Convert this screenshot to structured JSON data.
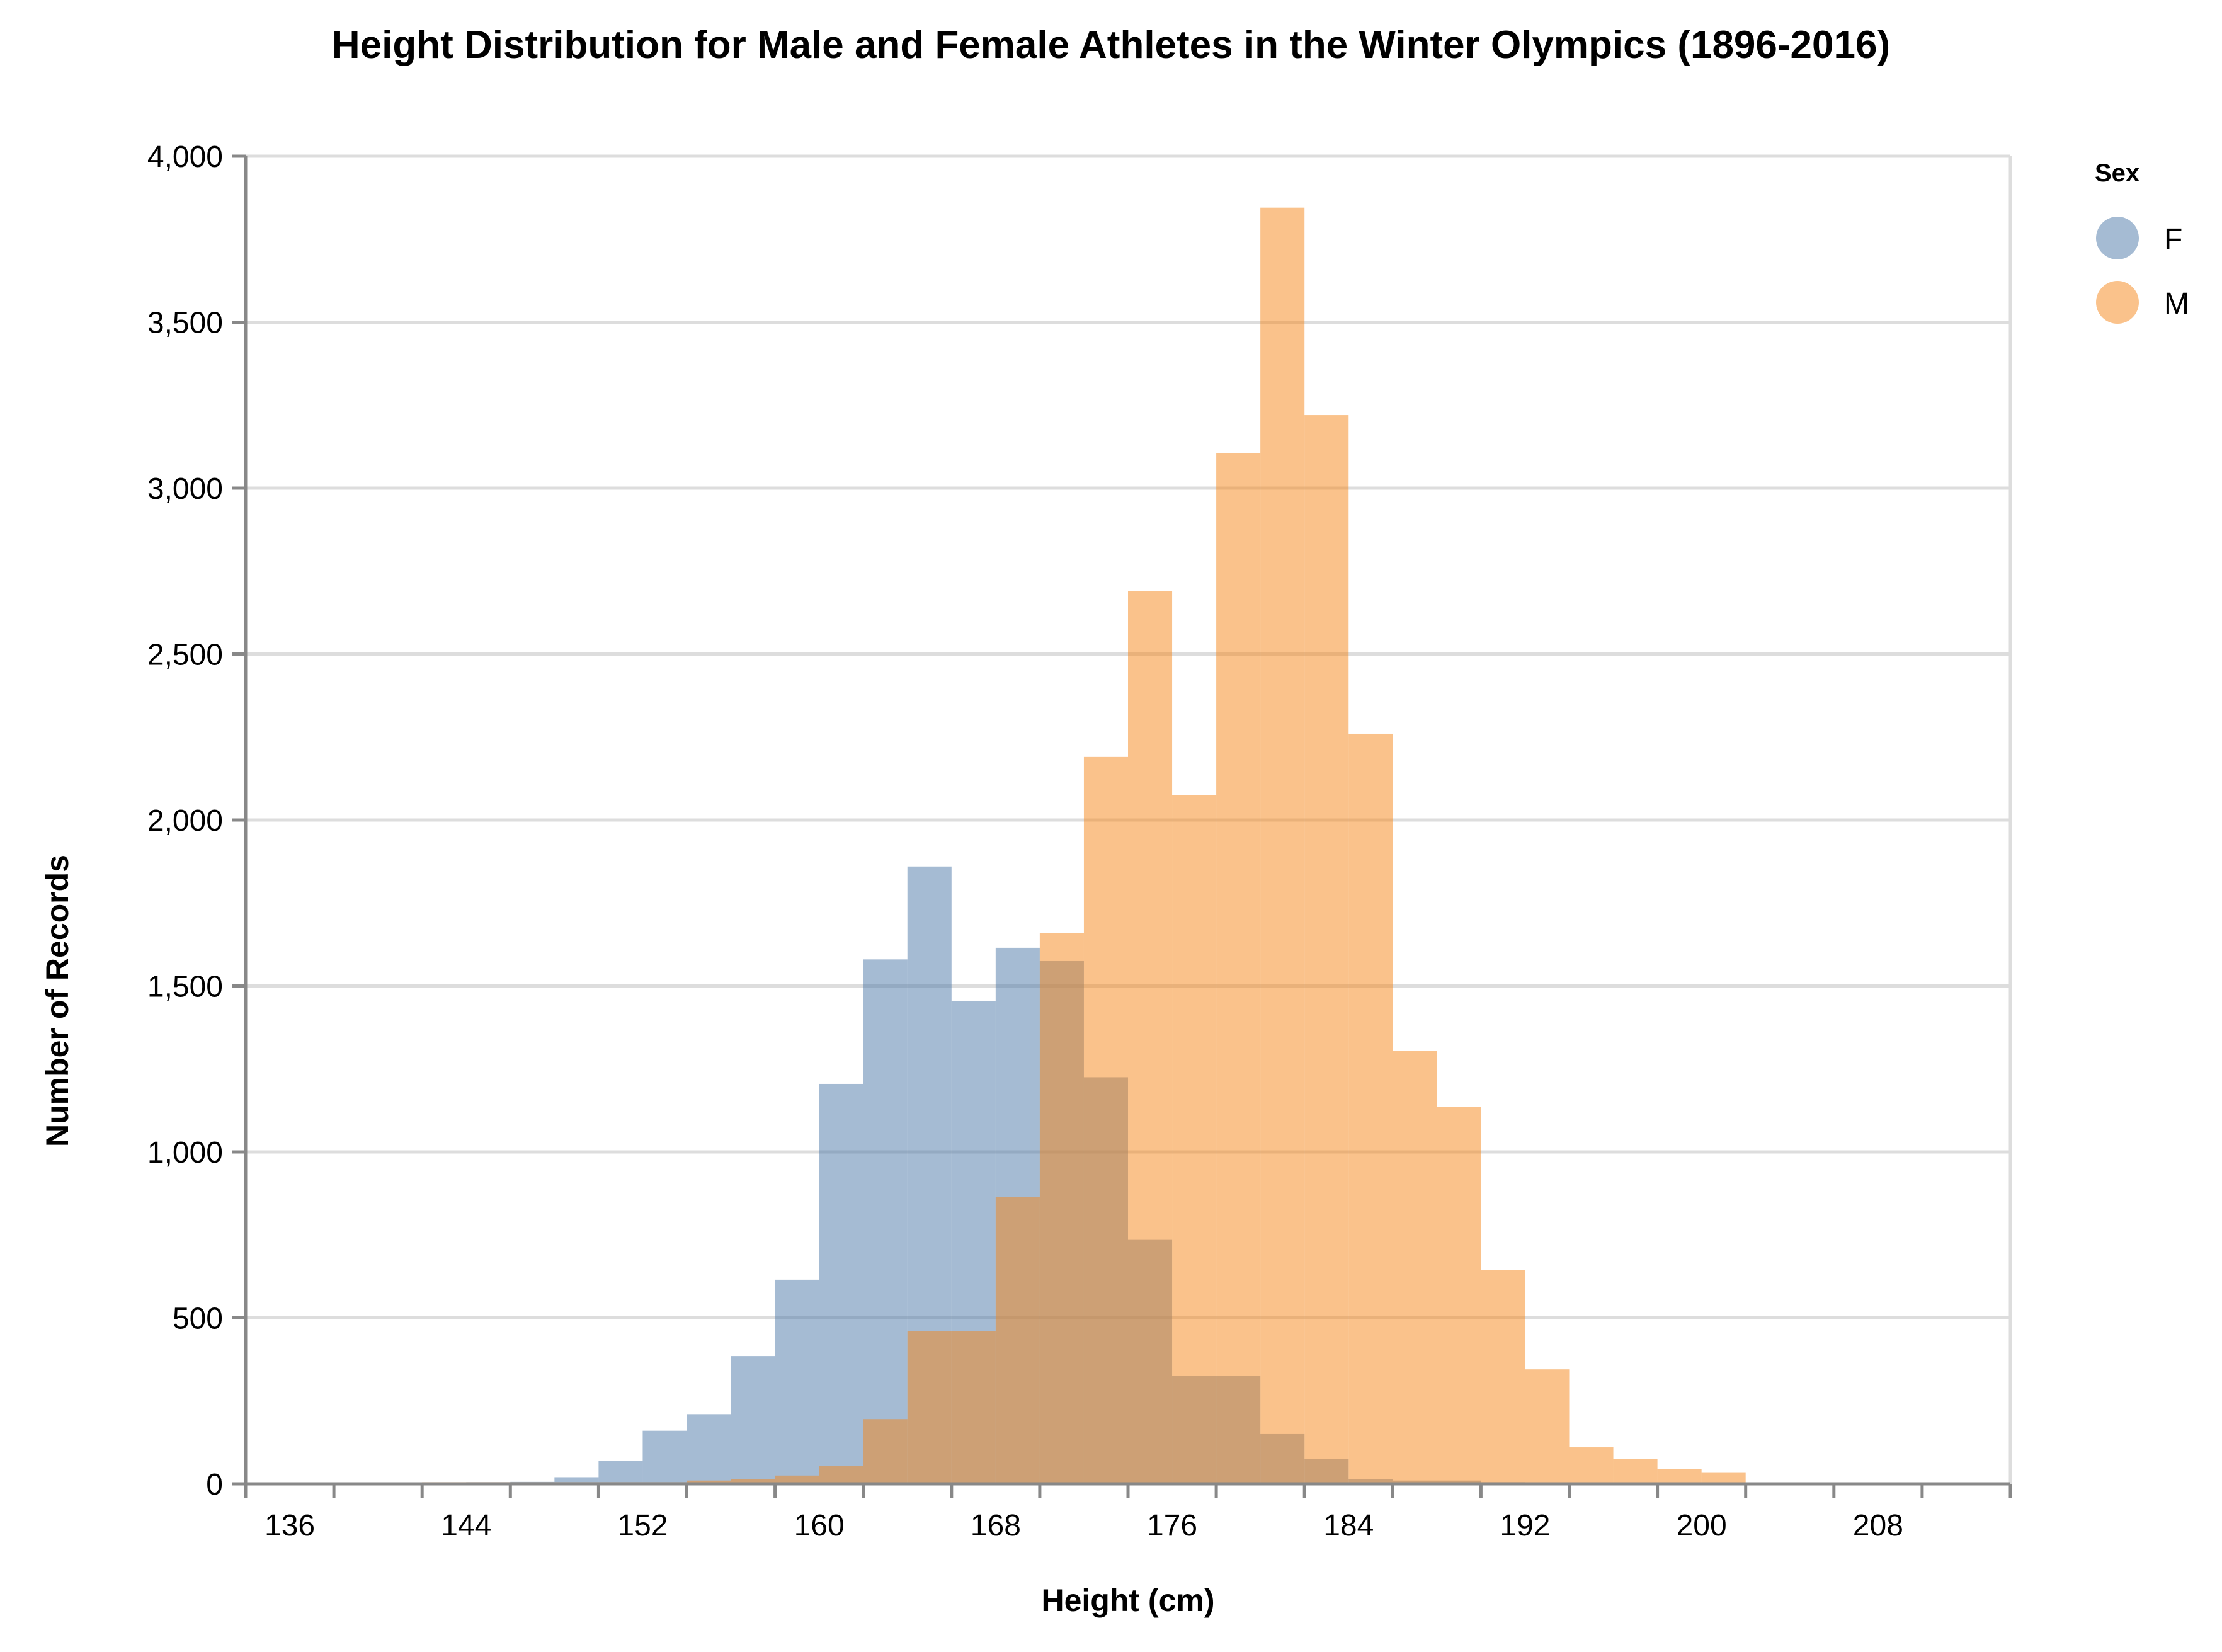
{
  "chart_data": {
    "type": "bar",
    "title": "Height Distribution for Male and Female Athletes in the Winter Olympics (1896-2016)",
    "xlabel": "Height (cm)",
    "ylabel": "Number of Records",
    "xlim": [
      134,
      214
    ],
    "ylim": [
      0,
      4000
    ],
    "bin_width": 2,
    "x_ticks": [
      "136",
      "144",
      "152",
      "160",
      "168",
      "176",
      "184",
      "192",
      "200",
      "208"
    ],
    "y_ticks": [
      "0",
      "500",
      "1,000",
      "1,500",
      "2,000",
      "2,500",
      "3,000",
      "3,500",
      "4,000"
    ],
    "grid": true,
    "legend": {
      "title": "Sex",
      "placement": "top-right"
    },
    "series": [
      {
        "name": "F",
        "color": "#4c78a8",
        "bins": [
          {
            "x0": 134,
            "x1": 136,
            "value": 2
          },
          {
            "x0": 136,
            "x1": 138,
            "value": 2
          },
          {
            "x0": 138,
            "x1": 140,
            "value": 3
          },
          {
            "x0": 140,
            "x1": 142,
            "value": 3
          },
          {
            "x0": 142,
            "x1": 144,
            "value": 4
          },
          {
            "x0": 144,
            "x1": 146,
            "value": 5
          },
          {
            "x0": 146,
            "x1": 148,
            "value": 6
          },
          {
            "x0": 148,
            "x1": 150,
            "value": 20
          },
          {
            "x0": 150,
            "x1": 152,
            "value": 70
          },
          {
            "x0": 152,
            "x1": 154,
            "value": 160
          },
          {
            "x0": 154,
            "x1": 156,
            "value": 210
          },
          {
            "x0": 156,
            "x1": 158,
            "value": 385
          },
          {
            "x0": 158,
            "x1": 160,
            "value": 615
          },
          {
            "x0": 160,
            "x1": 162,
            "value": 1205
          },
          {
            "x0": 162,
            "x1": 164,
            "value": 1580
          },
          {
            "x0": 164,
            "x1": 166,
            "value": 1860
          },
          {
            "x0": 166,
            "x1": 168,
            "value": 1455
          },
          {
            "x0": 168,
            "x1": 170,
            "value": 1615
          },
          {
            "x0": 170,
            "x1": 172,
            "value": 1575
          },
          {
            "x0": 172,
            "x1": 174,
            "value": 1225
          },
          {
            "x0": 174,
            "x1": 176,
            "value": 735
          },
          {
            "x0": 176,
            "x1": 178,
            "value": 325
          },
          {
            "x0": 178,
            "x1": 180,
            "value": 325
          },
          {
            "x0": 180,
            "x1": 182,
            "value": 150
          },
          {
            "x0": 182,
            "x1": 184,
            "value": 75
          },
          {
            "x0": 184,
            "x1": 186,
            "value": 15
          },
          {
            "x0": 186,
            "x1": 188,
            "value": 10
          },
          {
            "x0": 188,
            "x1": 190,
            "value": 10
          },
          {
            "x0": 190,
            "x1": 192,
            "value": 5
          }
        ]
      },
      {
        "name": "M",
        "color": "#f58518",
        "bins": [
          {
            "x0": 142,
            "x1": 144,
            "value": 5
          },
          {
            "x0": 144,
            "x1": 146,
            "value": 5
          },
          {
            "x0": 146,
            "x1": 148,
            "value": 5
          },
          {
            "x0": 148,
            "x1": 150,
            "value": 5
          },
          {
            "x0": 150,
            "x1": 152,
            "value": 5
          },
          {
            "x0": 152,
            "x1": 154,
            "value": 5
          },
          {
            "x0": 154,
            "x1": 156,
            "value": 10
          },
          {
            "x0": 156,
            "x1": 158,
            "value": 15
          },
          {
            "x0": 158,
            "x1": 160,
            "value": 25
          },
          {
            "x0": 160,
            "x1": 162,
            "value": 55
          },
          {
            "x0": 162,
            "x1": 164,
            "value": 195
          },
          {
            "x0": 164,
            "x1": 166,
            "value": 460
          },
          {
            "x0": 166,
            "x1": 168,
            "value": 460
          },
          {
            "x0": 168,
            "x1": 170,
            "value": 865
          },
          {
            "x0": 170,
            "x1": 172,
            "value": 1660
          },
          {
            "x0": 172,
            "x1": 174,
            "value": 2190
          },
          {
            "x0": 174,
            "x1": 176,
            "value": 2690
          },
          {
            "x0": 176,
            "x1": 178,
            "value": 2075
          },
          {
            "x0": 178,
            "x1": 180,
            "value": 3105
          },
          {
            "x0": 180,
            "x1": 182,
            "value": 3845
          },
          {
            "x0": 182,
            "x1": 184,
            "value": 3220
          },
          {
            "x0": 184,
            "x1": 186,
            "value": 2260
          },
          {
            "x0": 186,
            "x1": 188,
            "value": 1305
          },
          {
            "x0": 188,
            "x1": 190,
            "value": 1135
          },
          {
            "x0": 190,
            "x1": 192,
            "value": 645
          },
          {
            "x0": 192,
            "x1": 194,
            "value": 345
          },
          {
            "x0": 194,
            "x1": 196,
            "value": 110
          },
          {
            "x0": 196,
            "x1": 198,
            "value": 75
          },
          {
            "x0": 198,
            "x1": 200,
            "value": 45
          },
          {
            "x0": 200,
            "x1": 202,
            "value": 35
          },
          {
            "x0": 202,
            "x1": 204,
            "value": 3
          },
          {
            "x0": 204,
            "x1": 206,
            "value": 3
          },
          {
            "x0": 206,
            "x1": 208,
            "value": 3
          },
          {
            "x0": 208,
            "x1": 210,
            "value": 3
          }
        ]
      }
    ]
  }
}
